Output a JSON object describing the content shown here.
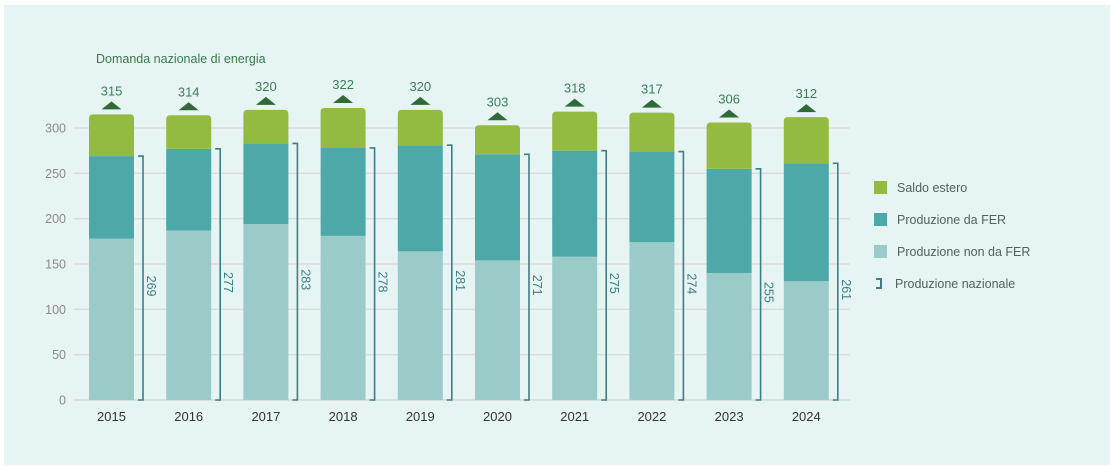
{
  "chart_data": {
    "type": "bar",
    "stacked": true,
    "title": "Domanda nazionale di energia",
    "xlabel": "",
    "ylabel": "",
    "ylim": [
      0,
      300
    ],
    "yticks": [
      0,
      50,
      100,
      150,
      200,
      250,
      300
    ],
    "grid": true,
    "legend_position": "right",
    "categories": [
      "2015",
      "2016",
      "2017",
      "2018",
      "2019",
      "2020",
      "2021",
      "2022",
      "2023",
      "2024"
    ],
    "series": [
      {
        "name": "Produzione non da FER",
        "color": "#9bcbc9",
        "values": [
          178,
          187,
          194,
          181,
          164,
          154,
          158,
          174,
          140,
          131
        ]
      },
      {
        "name": "Produzione da FER",
        "color": "#4da8a8",
        "values": [
          91,
          90,
          89,
          97,
          117,
          117,
          117,
          100,
          115,
          130
        ]
      },
      {
        "name": "Saldo estero",
        "color": "#93bb42",
        "values": [
          46,
          37,
          37,
          44,
          39,
          32,
          43,
          43,
          51,
          51
        ]
      }
    ],
    "produzione_nazionale": {
      "name": "Produzione nazionale",
      "color": "#3c7f85",
      "values": [
        269,
        277,
        283,
        278,
        281,
        271,
        275,
        274,
        255,
        261
      ]
    },
    "domanda_nazionale": {
      "name": "Domanda nazionale di energia",
      "color": "#2e6b36",
      "values": [
        315,
        314,
        320,
        322,
        320,
        303,
        318,
        317,
        306,
        312
      ]
    }
  },
  "legend": {
    "items": [
      {
        "label": "Saldo estero",
        "color": "#93bb42",
        "kind": "square"
      },
      {
        "label": "Produzione da FER",
        "color": "#4da8a8",
        "kind": "square"
      },
      {
        "label": "Produzione non da FER",
        "color": "#9bcbc9",
        "kind": "square"
      },
      {
        "label": "Produzione nazionale",
        "color": "#3c7f85",
        "kind": "bracket"
      }
    ]
  }
}
